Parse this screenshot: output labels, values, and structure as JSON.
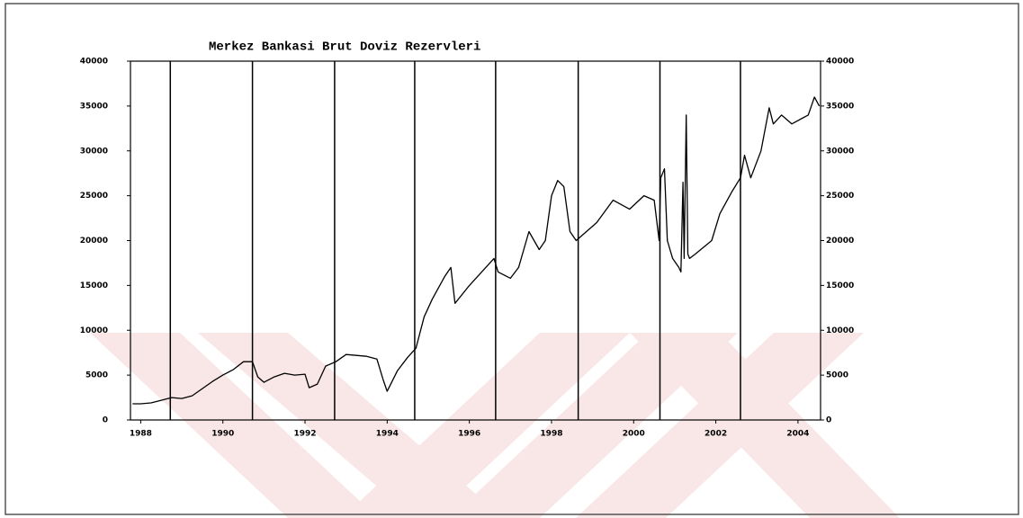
{
  "chart_data": {
    "type": "line",
    "title": "Merkez Bankasi Brut Doviz Rezervleri",
    "x": [
      1987.8,
      1988.0,
      1988.25,
      1988.5,
      1988.75,
      1989.0,
      1989.25,
      1989.5,
      1989.75,
      1990.0,
      1990.25,
      1990.5,
      1990.72,
      1990.85,
      1991.0,
      1991.25,
      1991.5,
      1991.75,
      1992.0,
      1992.1,
      1992.3,
      1992.5,
      1992.75,
      1993.0,
      1993.25,
      1993.5,
      1993.75,
      1993.9,
      1994.0,
      1994.25,
      1994.5,
      1994.7,
      1994.9,
      1995.1,
      1995.4,
      1995.55,
      1995.65,
      1996.0,
      1996.4,
      1996.6,
      1996.7,
      1997.0,
      1997.2,
      1997.45,
      1997.7,
      1997.85,
      1998.0,
      1998.15,
      1998.3,
      1998.45,
      1998.6,
      1999.1,
      1999.5,
      1999.9,
      2000.25,
      2000.5,
      2000.62,
      2000.66,
      2000.75,
      2000.82,
      2000.95,
      2001.1,
      2001.15,
      2001.2,
      2001.23,
      2001.28,
      2001.32,
      2001.36,
      2001.5,
      2001.9,
      2002.1,
      2002.4,
      2002.6,
      2002.7,
      2002.85,
      2003.1,
      2003.3,
      2003.4,
      2003.6,
      2003.85,
      2004.05,
      2004.25,
      2004.4,
      2004.52
    ],
    "values": [
      1800,
      1800,
      1900,
      2200,
      2500,
      2400,
      2700,
      3500,
      4300,
      5000,
      5600,
      6500,
      6500,
      4800,
      4200,
      4800,
      5200,
      5000,
      5100,
      3600,
      4000,
      6000,
      6500,
      7300,
      7200,
      7100,
      6800,
      4500,
      3200,
      5500,
      7000,
      8000,
      11500,
      13500,
      16000,
      17000,
      13000,
      15000,
      17000,
      18000,
      16500,
      15800,
      17000,
      21000,
      19000,
      20000,
      25000,
      26700,
      26000,
      21000,
      20000,
      22000,
      24500,
      23500,
      25000,
      24500,
      20000,
      27000,
      28000,
      20000,
      18000,
      17000,
      16500,
      26500,
      18000,
      34000,
      18500,
      18000,
      18500,
      20000,
      23000,
      25500,
      27000,
      29500,
      27000,
      30000,
      34800,
      33000,
      34000,
      33000,
      33500,
      34000,
      36000,
      35000
    ],
    "color": "#000000",
    "xlim": [
      1987.75,
      2004.55
    ],
    "xticks": [
      1988,
      1990,
      1992,
      1994,
      1996,
      1998,
      2000,
      2002,
      2004
    ],
    "vlines": [
      1988.72,
      1990.72,
      1992.72,
      1994.67,
      1996.64,
      1998.65,
      2000.64,
      2002.6
    ],
    "ylim": [
      0,
      40000
    ],
    "yticks": [
      0,
      5000,
      10000,
      15000,
      20000,
      25000,
      30000,
      35000,
      40000
    ],
    "y2lim": [
      0,
      40000
    ],
    "y2ticks": [
      0,
      5000,
      10000,
      15000,
      20000,
      25000,
      30000,
      35000,
      40000
    ]
  }
}
